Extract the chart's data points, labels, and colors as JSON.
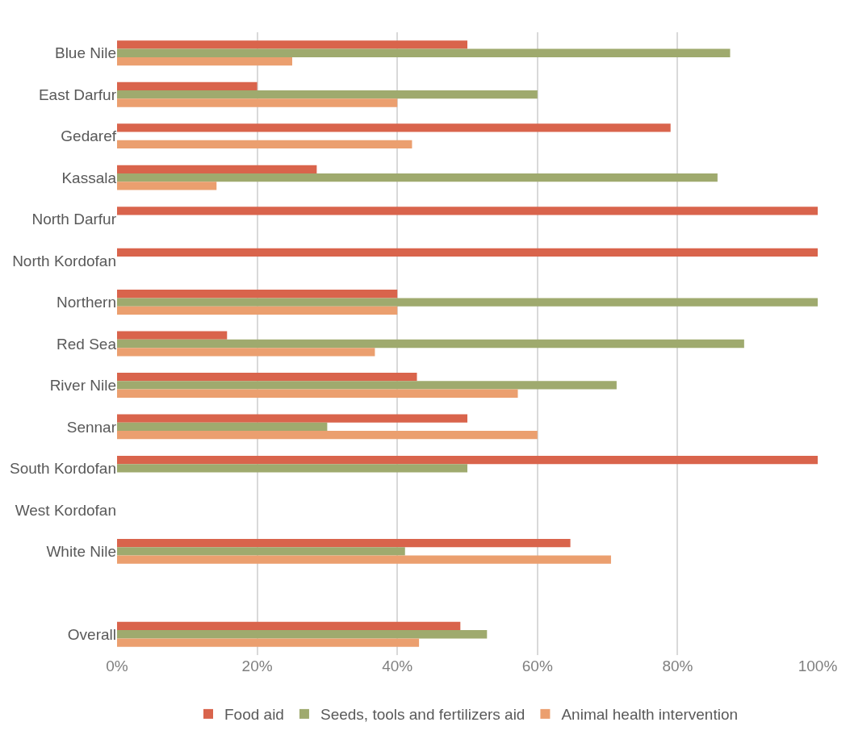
{
  "chart_data": {
    "type": "bar",
    "orientation": "horizontal",
    "categories": [
      "Blue Nile",
      "East Darfur",
      "Gedaref",
      "Kassala",
      "North Darfur",
      "North Kordofan",
      "Northern",
      "Red Sea",
      "River Nile",
      "Sennar",
      "South Kordofan",
      "West Kordofan",
      "White Nile",
      null,
      "Overall"
    ],
    "series": [
      {
        "name": "Food aid",
        "color": "#d9644c",
        "values": [
          50,
          20,
          79,
          28.5,
          100,
          100,
          40,
          15.7,
          42.8,
          50,
          100,
          null,
          64.7,
          null,
          49
        ]
      },
      {
        "name": "Seeds, tools and fertilizers aid",
        "color": "#9faa6e",
        "values": [
          87.5,
          60,
          null,
          85.7,
          null,
          null,
          100,
          89.5,
          71.3,
          30,
          50,
          null,
          41.1,
          null,
          52.8
        ]
      },
      {
        "name": "Animal health intervention",
        "color": "#eb9f6f",
        "values": [
          25,
          40,
          42.1,
          14.2,
          null,
          null,
          40,
          36.8,
          57.2,
          60,
          null,
          null,
          70.5,
          null,
          43.1
        ]
      }
    ],
    "xlim": [
      0,
      100
    ],
    "xticks": [
      {
        "value": 0,
        "label": "0%"
      },
      {
        "value": 20,
        "label": "20%"
      },
      {
        "value": 40,
        "label": "40%"
      },
      {
        "value": 60,
        "label": "60%"
      },
      {
        "value": 80,
        "label": "80%"
      },
      {
        "value": 100,
        "label": "100%"
      }
    ],
    "grid": "x",
    "legend": "bottom"
  }
}
